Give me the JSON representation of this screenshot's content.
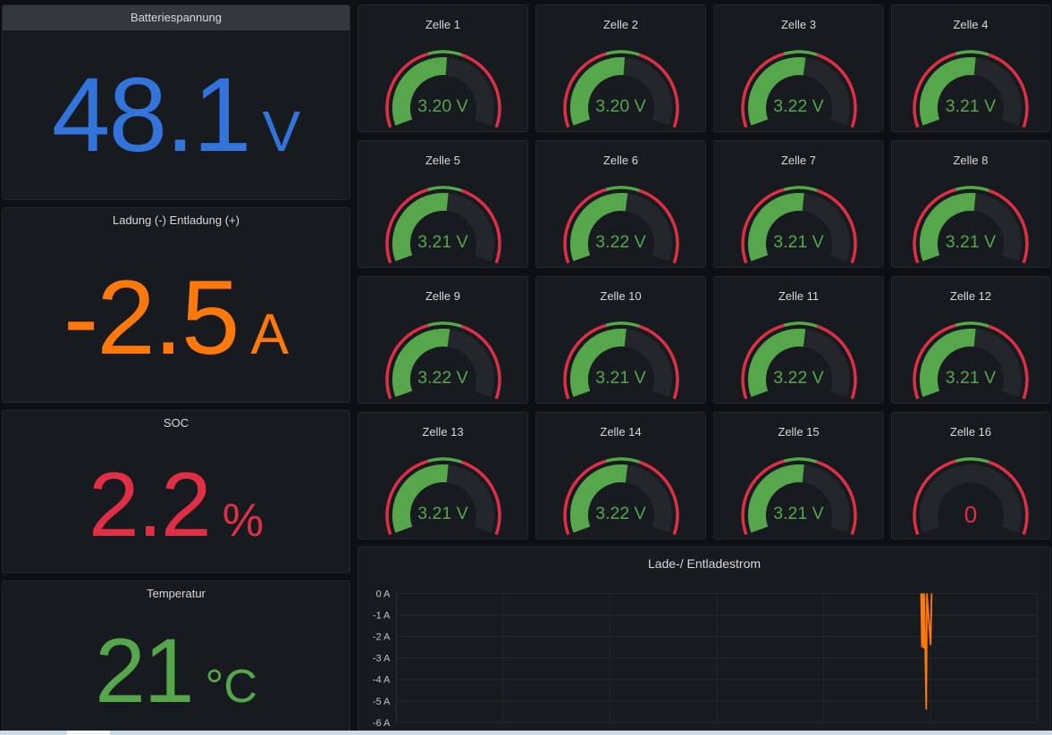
{
  "colors": {
    "page_bg": "#0E0F13",
    "panel_bg": "#171A1F",
    "panel_border": "#24262D",
    "header_highlight": "#34373E",
    "title_text": "#D8D9DA",
    "blue": "#3274D9",
    "orange": "#FF780A",
    "red": "#E02F44",
    "green": "#56A64B",
    "gauge_track": "#23262B",
    "axis_text": "#C3C5C9",
    "gridline": "#24272C",
    "scrollbar_track": "#C9DCE9",
    "scrollbar_thumb": "#F4F8FB"
  },
  "stats": [
    {
      "title": "Batteriespannung",
      "value": "48.1",
      "unit": "V",
      "color": "#3274D9",
      "highlighted_header": true
    },
    {
      "title": "Ladung (-) Entladung (+)",
      "value": "-2.5",
      "unit": "A",
      "color": "#FF780A",
      "highlighted_header": false
    },
    {
      "title": "SOC",
      "value": "2.2",
      "unit": "%",
      "color": "#E02F44",
      "highlighted_header": false
    },
    {
      "title": "Temperatur",
      "value": "21",
      "unit": "°C",
      "color": "#56A64B",
      "highlighted_header": false
    }
  ],
  "gauges": {
    "config": {
      "min": 2.5,
      "max": 3.85,
      "span_deg": 220,
      "start_deg": 200,
      "thresholds": [
        {
          "from": 2.5,
          "color": "#E02F44"
        },
        {
          "from": 3.08,
          "color": "#56A64B"
        },
        {
          "from": 3.29,
          "color": "#E02F44"
        }
      ]
    },
    "cells": [
      {
        "label": "Zelle 1",
        "value": 3.2,
        "display": "3.20 V",
        "state": "ok"
      },
      {
        "label": "Zelle 2",
        "value": 3.2,
        "display": "3.20 V",
        "state": "ok"
      },
      {
        "label": "Zelle 3",
        "value": 3.22,
        "display": "3.22 V",
        "state": "ok"
      },
      {
        "label": "Zelle 4",
        "value": 3.21,
        "display": "3.21 V",
        "state": "ok"
      },
      {
        "label": "Zelle 5",
        "value": 3.21,
        "display": "3.21 V",
        "state": "ok"
      },
      {
        "label": "Zelle 6",
        "value": 3.22,
        "display": "3.22 V",
        "state": "ok"
      },
      {
        "label": "Zelle 7",
        "value": 3.21,
        "display": "3.21 V",
        "state": "ok"
      },
      {
        "label": "Zelle 8",
        "value": 3.21,
        "display": "3.21 V",
        "state": "ok"
      },
      {
        "label": "Zelle 9",
        "value": 3.22,
        "display": "3.22 V",
        "state": "ok"
      },
      {
        "label": "Zelle 10",
        "value": 3.21,
        "display": "3.21 V",
        "state": "ok"
      },
      {
        "label": "Zelle 11",
        "value": 3.22,
        "display": "3.22 V",
        "state": "ok"
      },
      {
        "label": "Zelle 12",
        "value": 3.21,
        "display": "3.21 V",
        "state": "ok"
      },
      {
        "label": "Zelle 13",
        "value": 3.21,
        "display": "3.21 V",
        "state": "ok"
      },
      {
        "label": "Zelle 14",
        "value": 3.22,
        "display": "3.22 V",
        "state": "ok"
      },
      {
        "label": "Zelle 15",
        "value": 3.21,
        "display": "3.21 V",
        "state": "ok"
      },
      {
        "label": "Zelle 16",
        "value": 0,
        "display": "0",
        "state": "alert"
      }
    ]
  },
  "chart_data": {
    "type": "line",
    "title": "Lade-/ Entladestrom",
    "xlabel": "",
    "ylabel": "A",
    "ylim": [
      -6.35,
      0.4
    ],
    "yticks": [
      0,
      -1,
      -2,
      -3,
      -4,
      -5,
      -6
    ],
    "ytick_labels": [
      "0 A",
      "-1 A",
      "-2 A",
      "-3 A",
      "-4 A",
      "-5 A",
      "-6 A"
    ],
    "grid": true,
    "legend": false,
    "series": [
      {
        "name": "Lade-/ Entladestrom",
        "color": "#FF780A",
        "points": [
          [
            0.8188,
            0
          ],
          [
            0.8202,
            -2.5
          ],
          [
            0.8211,
            0
          ],
          [
            0.8229,
            -2.55
          ],
          [
            0.8239,
            0
          ],
          [
            0.8269,
            -5.4
          ],
          [
            0.828,
            0
          ],
          [
            0.8337,
            -2.4
          ],
          [
            0.8354,
            0
          ]
        ]
      }
    ]
  }
}
